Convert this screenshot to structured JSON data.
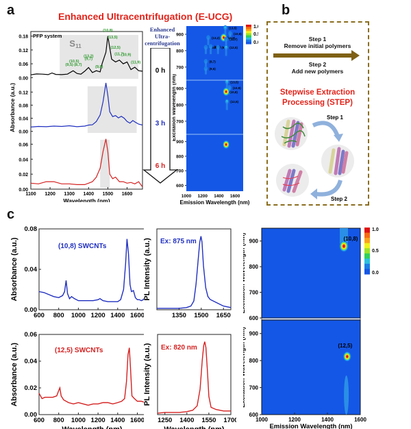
{
  "panels": {
    "a": {
      "letter": "a",
      "title": "Enhanced Ultracentrifugation (E-UCG)"
    },
    "b": {
      "letter": "b"
    },
    "c": {
      "letter": "c"
    }
  },
  "arrow": {
    "label_lines": [
      "Enhanced",
      "Ultra-",
      "centrifugation"
    ],
    "times": [
      {
        "label": "0 h",
        "color": "#000000"
      },
      {
        "label": "3 h",
        "color": "#1f2fbf"
      },
      {
        "label": "6 h",
        "color": "#d42020"
      }
    ]
  },
  "step_panel": {
    "step1_title": "Step 1",
    "step1_desc": "Remove initial polymers",
    "step2_title": "Step 2",
    "step2_desc": "Add new polymers",
    "title_line1": "Stepwise Extraction",
    "title_line2": "Processing (STEP)",
    "cycle_step1": "Step 1",
    "cycle_step2": "Step 2",
    "arrow_color": "#7f6115",
    "title_color": "#e2231a"
  },
  "chart_data": [
    {
      "id": "a-absorbance-stack",
      "type": "line",
      "xlabel": "Wavelength (nm)",
      "ylabel": "Absorbance (a.u.)",
      "xlim": [
        1100,
        1680
      ],
      "xticks": [
        1100,
        1200,
        1300,
        1400,
        1500,
        1600
      ],
      "annotation_system": "PFP system",
      "annotation_s11": "S11",
      "series": [
        {
          "name": "0 h",
          "color": "#000000",
          "ylim": [
            -0.02,
            0.2
          ],
          "yticks": [
            "0.00",
            "0.06",
            "0.12",
            "0.18"
          ],
          "ytick_values": [
            0,
            0.06,
            0.12,
            0.18
          ],
          "shade": [
            1250,
            1680
          ],
          "x": [
            1100,
            1130,
            1160,
            1190,
            1210,
            1230,
            1260,
            1290,
            1320,
            1340,
            1360,
            1380,
            1400,
            1420,
            1440,
            1460,
            1470,
            1490,
            1500,
            1510,
            1520,
            1540,
            1560,
            1580,
            1600,
            1620,
            1640,
            1660,
            1680
          ],
          "y": [
            0.012,
            0.016,
            0.015,
            0.013,
            0.02,
            0.014,
            0.013,
            0.015,
            0.03,
            0.018,
            0.015,
            0.028,
            0.044,
            0.022,
            0.03,
            0.025,
            0.06,
            0.11,
            0.18,
            0.13,
            0.08,
            0.068,
            0.076,
            0.06,
            0.068,
            0.035,
            0.045,
            0.03,
            0.028
          ],
          "peak_labels": [
            {
              "text": "(10,5)",
              "x": 1325,
              "y": 0.066
            },
            {
              "text": "(9,5)",
              "x": 1300,
              "y": 0.052
            },
            {
              "text": "(8,7)",
              "x": 1345,
              "y": 0.052
            },
            {
              "text": "(13,2)",
              "x": 1400,
              "y": 0.088
            },
            {
              "text": "(9,7)",
              "x": 1400,
              "y": 0.076
            },
            {
              "text": "(9,8)",
              "x": 1455,
              "y": 0.042
            },
            {
              "text": "(10,8)",
              "x": 1500,
              "y": 0.2
            },
            {
              "text": "(13,5)",
              "x": 1525,
              "y": 0.17
            },
            {
              "text": "(12,5)",
              "x": 1540,
              "y": 0.125
            },
            {
              "text": "(11,7)",
              "x": 1560,
              "y": 0.098
            },
            {
              "text": "(10,9)",
              "x": 1595,
              "y": 0.094
            },
            {
              "text": "(11,9)",
              "x": 1645,
              "y": 0.062
            }
          ],
          "label_color": "#2e9a2e"
        },
        {
          "name": "3 h",
          "color": "#1f2fbf",
          "ylim": [
            -0.005,
            0.15
          ],
          "yticks": [
            "0.00",
            "0.04",
            "0.08",
            "0.12"
          ],
          "ytick_values": [
            0,
            0.04,
            0.08,
            0.12
          ],
          "shade": [
            1395,
            1650
          ],
          "x": [
            1100,
            1140,
            1180,
            1220,
            1260,
            1300,
            1340,
            1380,
            1400,
            1420,
            1440,
            1460,
            1475,
            1490,
            1500,
            1510,
            1525,
            1540,
            1555,
            1570,
            1585,
            1600,
            1615,
            1630,
            1645,
            1660,
            1680
          ],
          "y": [
            0.013,
            0.015,
            0.014,
            0.016,
            0.015,
            0.017,
            0.014,
            0.016,
            0.019,
            0.02,
            0.03,
            0.05,
            0.09,
            0.148,
            0.11,
            0.06,
            0.045,
            0.048,
            0.041,
            0.046,
            0.04,
            0.03,
            0.025,
            0.033,
            0.027,
            0.022,
            0.019
          ]
        },
        {
          "name": "6 h",
          "color": "#d42020",
          "ylim": [
            0,
            0.075
          ],
          "yticks": [
            "0.00",
            "0.02",
            "0.04",
            "0.06"
          ],
          "ytick_values": [
            0,
            0.02,
            0.04,
            0.06
          ],
          "shade": [
            1460,
            1510
          ],
          "x": [
            1100,
            1140,
            1180,
            1220,
            1260,
            1300,
            1340,
            1380,
            1400,
            1420,
            1440,
            1460,
            1475,
            1490,
            1500,
            1510,
            1525,
            1540,
            1560,
            1580,
            1600,
            1620,
            1640,
            1660,
            1680
          ],
          "y": [
            0.008,
            0.007,
            0.01,
            0.01,
            0.007,
            0.007,
            0.006,
            0.006,
            0.008,
            0.01,
            0.016,
            0.028,
            0.05,
            0.067,
            0.05,
            0.02,
            0.014,
            0.016,
            0.01,
            0.01,
            0.008,
            0.009,
            0.007,
            0.01,
            0.003
          ]
        }
      ]
    },
    {
      "id": "a-pl-maps",
      "type": "heatmap",
      "xlabel": "Emission Wavelength (nm)",
      "ylabel": "Excitation Wavelength (nm)",
      "xlim": [
        1000,
        1700
      ],
      "xticks": [
        1000,
        1200,
        1400,
        1600
      ],
      "colorbar": {
        "ticks": [
          "1.0",
          "0.5",
          "0.0"
        ]
      },
      "maps": [
        {
          "name": "0 h",
          "ylim": [
            620,
            950
          ],
          "yticks": [
            700,
            800,
            900
          ],
          "spots": [
            {
              "label": "(13,5)",
              "x": 1480,
              "y": 940,
              "i": 0.45
            },
            {
              "label": "(10,9)",
              "x": 1540,
              "y": 905,
              "i": 0.35
            },
            {
              "label": "(13,2)",
              "x": 1270,
              "y": 880,
              "i": 0.4
            },
            {
              "label": "(10,8)",
              "x": 1460,
              "y": 880,
              "i": 1.0
            },
            {
              "label": "(11,7)",
              "x": 1490,
              "y": 870,
              "i": 0.4
            },
            {
              "label": "(10,5)",
              "x": 1240,
              "y": 820,
              "i": 0.35
            },
            {
              "label": "(9,7)",
              "x": 1300,
              "y": 825,
              "i": 0.4
            },
            {
              "label": "(9,8)",
              "x": 1390,
              "y": 820,
              "i": 0.35
            },
            {
              "label": "(12,5)",
              "x": 1490,
              "y": 820,
              "i": 0.45
            },
            {
              "label": "(8,7)",
              "x": 1240,
              "y": 735,
              "i": 0.3
            },
            {
              "label": "(9,5)",
              "x": 1240,
              "y": 690,
              "i": 0.3
            }
          ]
        },
        {
          "name": "3 h",
          "ylim": [
            620,
            950
          ],
          "yticks": [
            700,
            800,
            900
          ],
          "spots": [
            {
              "label": "(13,5)",
              "x": 1500,
              "y": 940,
              "i": 0.45
            },
            {
              "label": "(10,9)",
              "x": 1530,
              "y": 905,
              "i": 0.35
            },
            {
              "label": "(10,8)",
              "x": 1490,
              "y": 880,
              "i": 1.0
            },
            {
              "label": "(12,5)",
              "x": 1500,
              "y": 820,
              "i": 0.45
            }
          ]
        },
        {
          "name": "6 h",
          "ylim": [
            560,
            950
          ],
          "yticks": [
            600,
            700,
            800,
            900
          ],
          "spots": [
            {
              "label": "",
              "x": 1490,
              "y": 880,
              "i": 1.0
            }
          ]
        }
      ]
    },
    {
      "id": "c-abs-108",
      "type": "line",
      "title": "(10,8) SWCNTs",
      "color": "#1f2fbf",
      "xlabel": "Wavelength (nm)",
      "ylabel": "Absorbance (a.u.)",
      "xlim": [
        600,
        1680
      ],
      "ylim": [
        0,
        0.08
      ],
      "xticks": [
        600,
        800,
        1000,
        1200,
        1400,
        1600
      ],
      "yticks": [
        "0.00",
        "0.04",
        "0.08"
      ],
      "ytick_values": [
        0,
        0.04,
        0.08
      ],
      "x": [
        600,
        650,
        700,
        750,
        800,
        840,
        860,
        875,
        890,
        910,
        930,
        960,
        1000,
        1050,
        1100,
        1150,
        1200,
        1220,
        1250,
        1300,
        1350,
        1400,
        1430,
        1460,
        1480,
        1495,
        1510,
        1525,
        1540,
        1560,
        1580,
        1600,
        1620,
        1640,
        1660,
        1675,
        1680
      ],
      "y": [
        0.018,
        0.017,
        0.015,
        0.013,
        0.012,
        0.014,
        0.018,
        0.029,
        0.016,
        0.011,
        0.013,
        0.011,
        0.009,
        0.009,
        0.009,
        0.009,
        0.01,
        0.011,
        0.009,
        0.008,
        0.008,
        0.008,
        0.01,
        0.02,
        0.045,
        0.07,
        0.055,
        0.025,
        0.018,
        0.019,
        0.012,
        0.01,
        0.01,
        0.009,
        0.01,
        0.012,
        0.002
      ]
    },
    {
      "id": "c-pl-108",
      "type": "line",
      "title": "Ex: 875 nm",
      "color": "#1f2fbf",
      "xlabel": "Wavelength (nm)",
      "ylabel": "PL Intensity (a.u.)",
      "xlim": [
        1200,
        1700
      ],
      "ylim": [
        0,
        1.1
      ],
      "xticks": [
        1350,
        1500,
        1650
      ],
      "x": [
        1200,
        1250,
        1300,
        1350,
        1400,
        1430,
        1450,
        1465,
        1480,
        1490,
        1498,
        1505,
        1515,
        1530,
        1545,
        1560,
        1600,
        1650,
        1700
      ],
      "y": [
        0.02,
        0.02,
        0.02,
        0.02,
        0.03,
        0.05,
        0.12,
        0.35,
        0.7,
        0.92,
        1.0,
        0.92,
        0.6,
        0.3,
        0.18,
        0.14,
        0.1,
        0.05,
        0.03
      ]
    },
    {
      "id": "c-pl-map-108",
      "type": "heatmap",
      "xlabel": "Emission Wavelength (nm)",
      "ylabel": "Excitation Wavelength (nm)",
      "xlim": [
        1000,
        1600
      ],
      "ylim": [
        600,
        950
      ],
      "yticks": [
        600,
        700,
        800,
        900
      ],
      "colorbar": {
        "ticks": [
          "1.0",
          "0.5",
          "0.0"
        ]
      },
      "spots": [
        {
          "label": "(10,8)",
          "x": 1500,
          "y": 880,
          "i": 1.0
        }
      ]
    },
    {
      "id": "c-abs-125",
      "type": "line",
      "title": "(12,5) SWCNTs",
      "color": "#d42020",
      "xlabel": "Wavelength (nm)",
      "ylabel": "Absorbance (a.u.)",
      "xlim": [
        600,
        1680
      ],
      "ylim": [
        0,
        0.06
      ],
      "xticks": [
        600,
        800,
        1000,
        1200,
        1400,
        1600
      ],
      "yticks": [
        "0.00",
        "0.02",
        "0.04",
        "0.06"
      ],
      "ytick_values": [
        0,
        0.02,
        0.04,
        0.06
      ],
      "x": [
        600,
        630,
        660,
        700,
        740,
        780,
        800,
        812,
        825,
        850,
        900,
        950,
        1000,
        1050,
        1100,
        1150,
        1200,
        1250,
        1300,
        1350,
        1400,
        1440,
        1470,
        1490,
        1505,
        1518,
        1530,
        1545,
        1570,
        1600,
        1640,
        1680
      ],
      "y": [
        0.016,
        0.012,
        0.013,
        0.013,
        0.013,
        0.014,
        0.018,
        0.02,
        0.014,
        0.011,
        0.009,
        0.008,
        0.009,
        0.008,
        0.007,
        0.008,
        0.008,
        0.009,
        0.009,
        0.008,
        0.009,
        0.01,
        0.012,
        0.025,
        0.045,
        0.05,
        0.035,
        0.014,
        0.012,
        0.01,
        0.01,
        0.009
      ]
    },
    {
      "id": "c-pl-125",
      "type": "line",
      "title": "Ex: 820 nm",
      "color": "#d42020",
      "xlabel": "Wavelength (nm)",
      "ylabel": "PL Intensity (a.u.)",
      "xlim": [
        1200,
        1700
      ],
      "ylim": [
        0,
        1.1
      ],
      "xticks": [
        1250,
        1400,
        1550,
        1700
      ],
      "x": [
        1200,
        1250,
        1300,
        1350,
        1400,
        1440,
        1470,
        1490,
        1505,
        1515,
        1522,
        1530,
        1540,
        1550,
        1565,
        1600,
        1650,
        1700
      ],
      "y": [
        0.02,
        0.03,
        0.03,
        0.03,
        0.04,
        0.06,
        0.12,
        0.35,
        0.75,
        0.95,
        1.0,
        0.92,
        0.6,
        0.25,
        0.1,
        0.07,
        0.05,
        0.05
      ]
    },
    {
      "id": "c-pl-map-125",
      "type": "heatmap",
      "xlabel": "Emission Wavelength (nm)",
      "ylabel": "Excitation Wavelength (nm)",
      "xlim": [
        1000,
        1600
      ],
      "ylim": [
        600,
        950
      ],
      "xticks": [
        1000,
        1200,
        1400,
        1600
      ],
      "yticks": [
        600,
        700,
        800,
        900
      ],
      "spots": [
        {
          "label": "(12,5)",
          "x": 1520,
          "y": 815,
          "i": 1.0
        }
      ],
      "streak": {
        "x": 1515,
        "y_from": 600,
        "y_to": 745,
        "i": 0.3
      }
    }
  ]
}
